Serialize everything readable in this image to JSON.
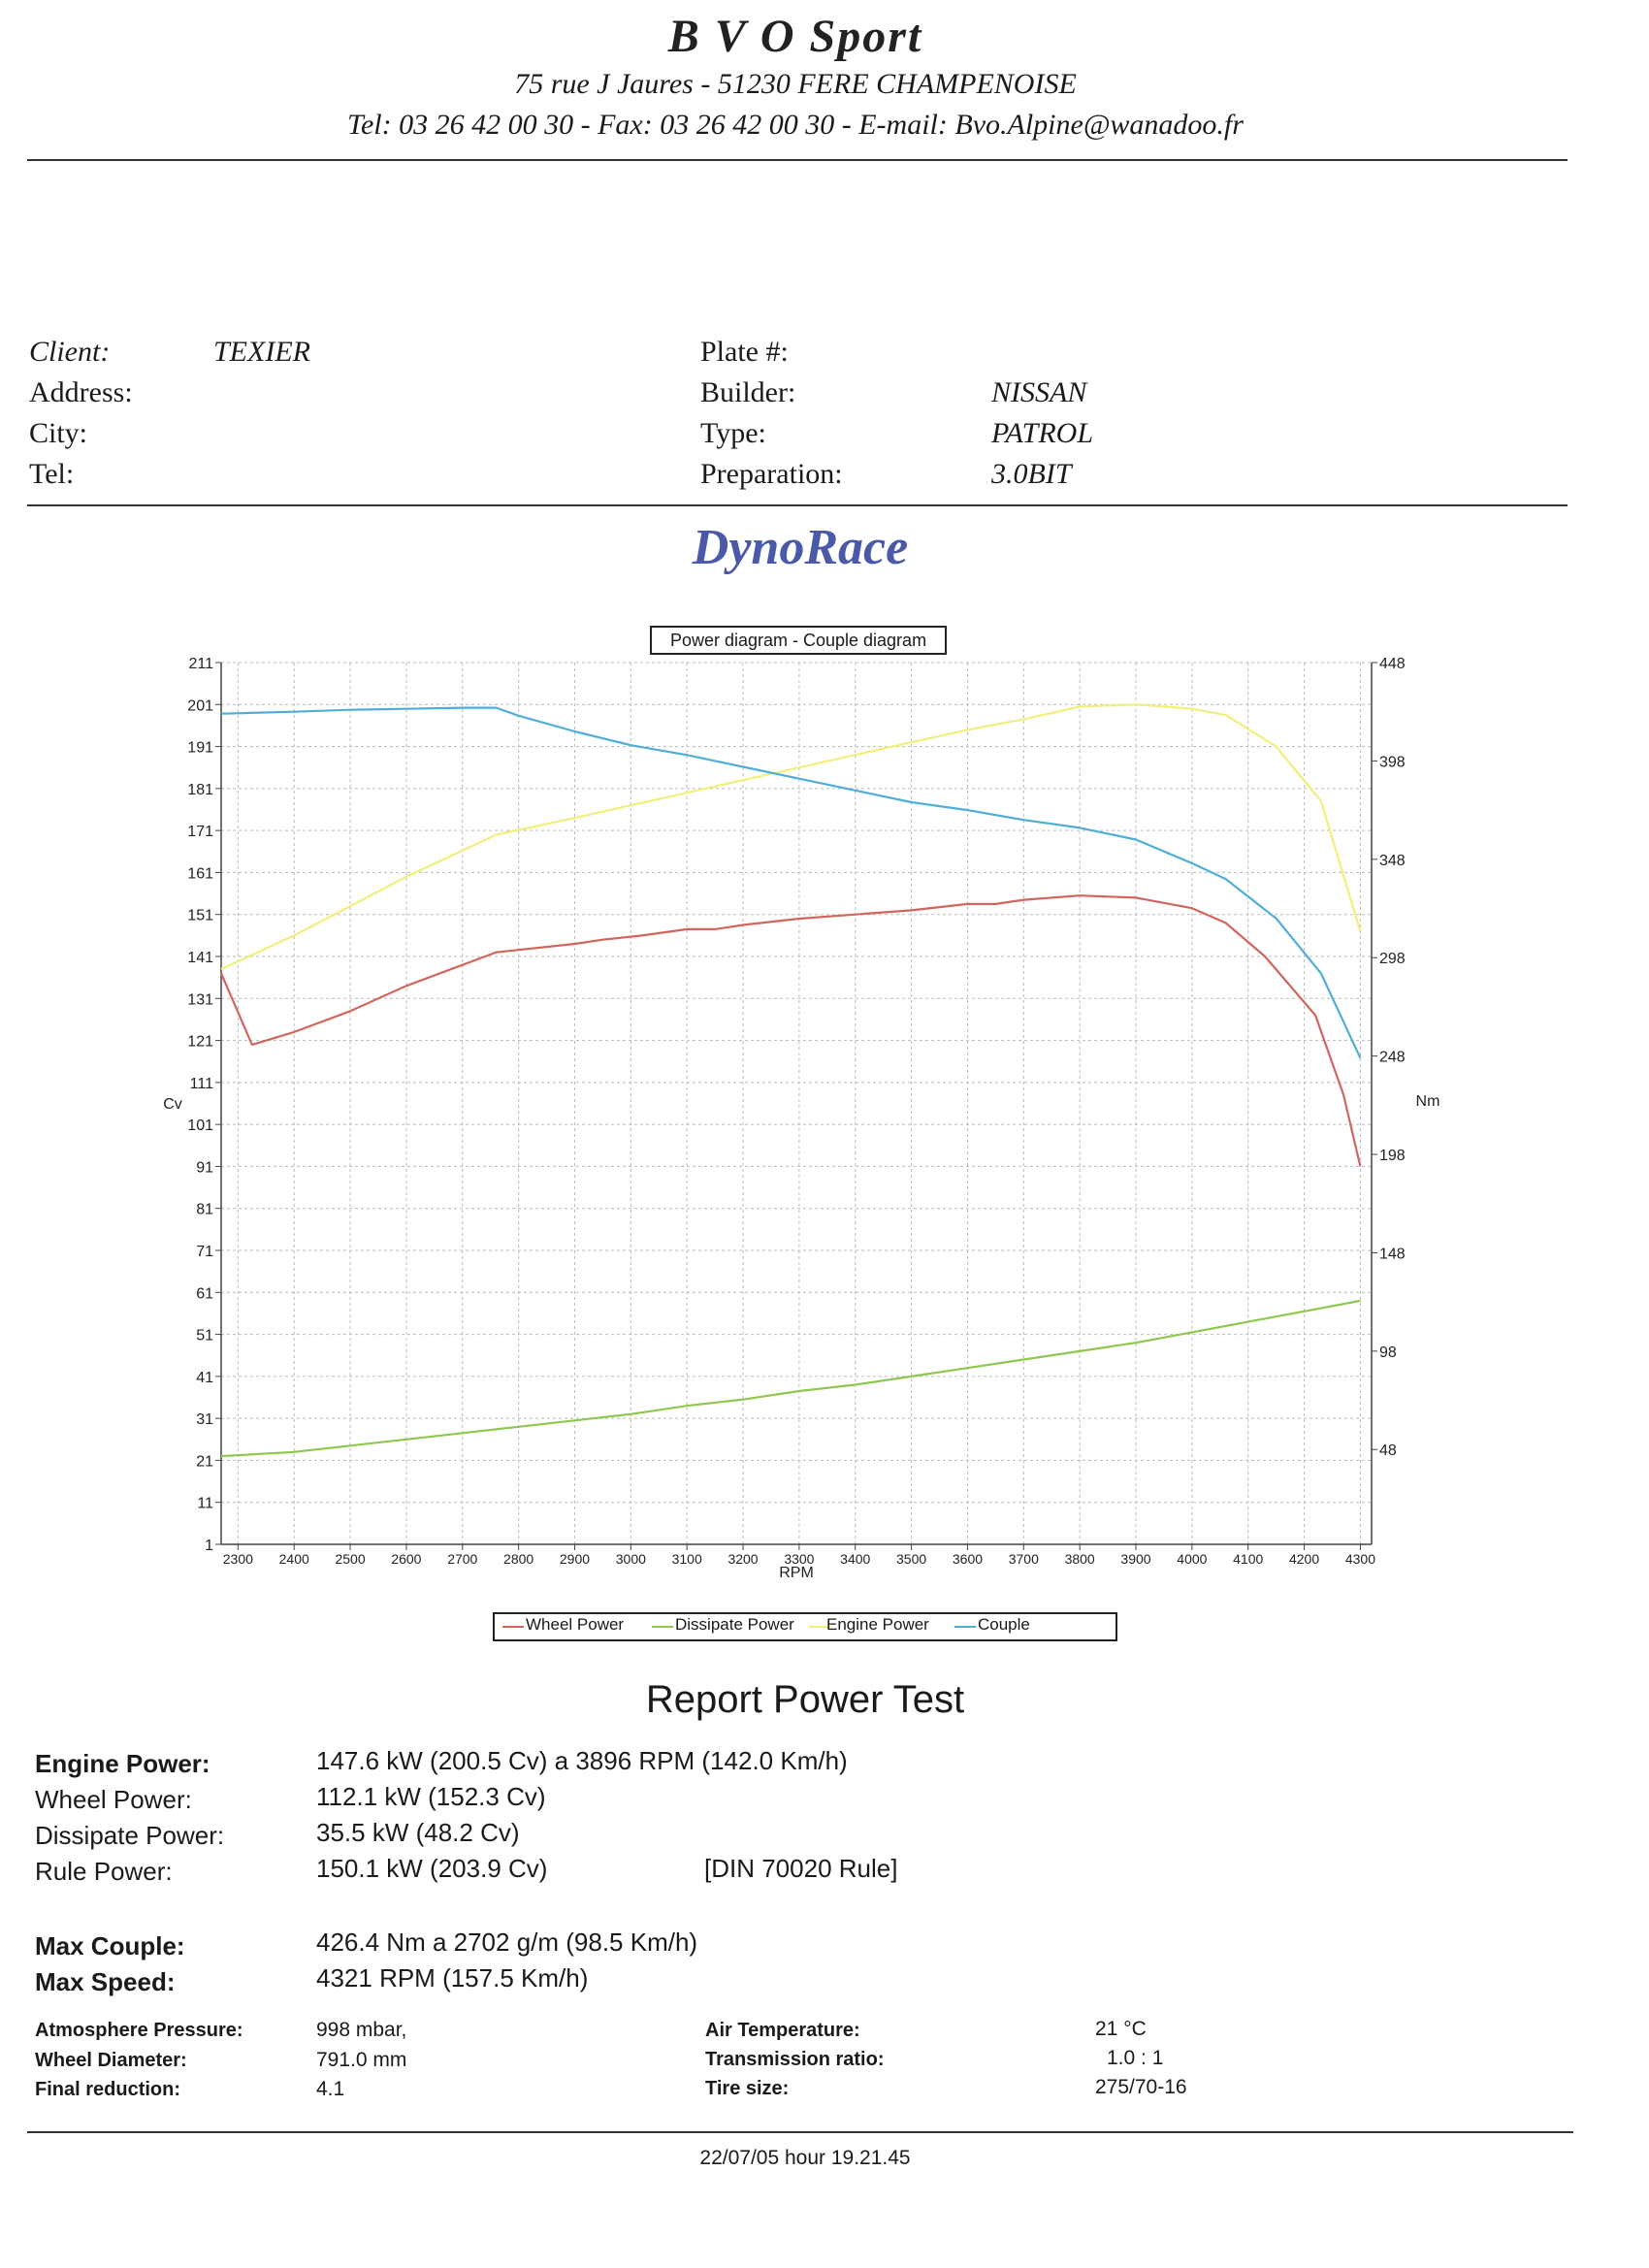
{
  "header": {
    "company": "B V O   Sport",
    "address": "75 rue J Jaures - 51230 FERE CHAMPENOISE",
    "contact": "Tel: 03 26 42 00 30 - Fax: 03 26 42 00 30 - E-mail: Bvo.Alpine@wanadoo.fr"
  },
  "client": {
    "client_label": "Client:",
    "client_value": "TEXIER",
    "address_label": "Address:",
    "city_label": "City:",
    "tel_label": "Tel:",
    "plate_label": "Plate #:",
    "builder_label": "Builder:",
    "builder_value": "NISSAN",
    "type_label": "Type:",
    "type_value": "PATROL",
    "prep_label": "Preparation:",
    "prep_value": "3.0BIT"
  },
  "brand": "DynoRace",
  "chart_data": {
    "type": "line",
    "title": "Power diagram - Couple diagram",
    "xlabel": "RPM",
    "ylabel_left": "Cv",
    "ylabel_right": "Nm",
    "x_ticks": [
      2300,
      2400,
      2500,
      2600,
      2700,
      2800,
      2900,
      3000,
      3100,
      3200,
      3300,
      3400,
      3500,
      3600,
      3700,
      3800,
      3900,
      4000,
      4100,
      4200,
      4300
    ],
    "xlim": [
      2270,
      4320
    ],
    "y_left_ticks": [
      1,
      11,
      21,
      31,
      41,
      51,
      61,
      71,
      81,
      91,
      101,
      111,
      121,
      131,
      141,
      151,
      161,
      171,
      181,
      191,
      201,
      211
    ],
    "ylim_left": [
      1,
      211
    ],
    "y_right_ticks": [
      48,
      98,
      148,
      198,
      248,
      298,
      348,
      398,
      448
    ],
    "ylim_right": [
      -0.2,
      448
    ],
    "grid": true,
    "legend_position": "bottom",
    "series": [
      {
        "name": "Wheel Power",
        "axis": "left",
        "color": "#d0665e",
        "x": [
          2270,
          2325,
          2400,
          2500,
          2600,
          2700,
          2760,
          2900,
          2950,
          3020,
          3100,
          3150,
          3200,
          3300,
          3400,
          3500,
          3600,
          3650,
          3700,
          3800,
          3900,
          4000,
          4060,
          4130,
          4220,
          4270,
          4300
        ],
        "y": [
          137,
          120,
          123,
          128,
          134,
          139,
          142,
          144,
          145,
          146,
          147.5,
          147.5,
          148.5,
          150,
          151,
          152,
          153.5,
          153.5,
          154.5,
          155.5,
          155,
          152.5,
          149,
          141,
          127,
          108,
          91
        ]
      },
      {
        "name": "Dissipate Power",
        "axis": "left",
        "color": "#8ec84e",
        "x": [
          2270,
          2400,
          2500,
          2600,
          2700,
          2800,
          2900,
          3000,
          3100,
          3200,
          3300,
          3400,
          3500,
          3600,
          3700,
          3800,
          3900,
          4000,
          4100,
          4200,
          4300
        ],
        "y": [
          22,
          23,
          24.5,
          26,
          27.5,
          29,
          30.5,
          32,
          34,
          35.5,
          37.5,
          39,
          41,
          43,
          45,
          47,
          49,
          51.5,
          54,
          56.5,
          59
        ]
      },
      {
        "name": "Engine Power",
        "axis": "left",
        "color": "#f2ef7a",
        "x": [
          2270,
          2400,
          2500,
          2600,
          2760,
          2900,
          3000,
          3100,
          3200,
          3300,
          3400,
          3500,
          3600,
          3700,
          3800,
          3900,
          4000,
          4060,
          4150,
          4230,
          4300
        ],
        "y": [
          138,
          146,
          153,
          160,
          170,
          174,
          177,
          180,
          183,
          186,
          189,
          192,
          195,
          197.5,
          200.5,
          201,
          200,
          198.5,
          191,
          178,
          147
        ]
      },
      {
        "name": "Couple",
        "axis": "right",
        "color": "#4eaed8",
        "x": [
          2270,
          2400,
          2500,
          2600,
          2700,
          2760,
          2800,
          2900,
          3000,
          3100,
          3200,
          3300,
          3400,
          3500,
          3600,
          3700,
          3800,
          3900,
          4000,
          4060,
          4150,
          4230,
          4300
        ],
        "y": [
          422,
          423,
          424,
          424.5,
          425,
          425,
          421,
          413,
          406,
          401,
          395,
          389,
          383,
          377,
          373,
          368,
          364,
          358,
          346,
          338,
          318,
          290,
          247
        ]
      }
    ]
  },
  "legend": [
    "Wheel Power",
    "Dissipate Power",
    "Engine Power",
    "Couple"
  ],
  "report": {
    "title": "Report Power Test",
    "engine_label": "Engine Power:",
    "engine_value": "147.6 kW (200.5 Cv) a 3896 RPM (142.0 Km/h)",
    "wheel_label": "Wheel Power:",
    "wheel_value": "112.1 kW (152.3 Cv)",
    "dissipate_label": "Dissipate Power:",
    "dissipate_value": "35.5 kW (48.2 Cv)",
    "rule_label": "Rule Power:",
    "rule_value": "150.1 kW (203.9 Cv)",
    "rule_note": "[DIN 70020 Rule]",
    "max_couple_label": "Max Couple:",
    "max_couple_value": "426.4 Nm a 2702 g/m (98.5 Km/h)",
    "max_speed_label": "Max Speed:",
    "max_speed_value": "4321 RPM (157.5 Km/h)",
    "atm_label": "Atmosphere Pressure:",
    "atm_value": "998 mbar,",
    "wheel_dia_label": "Wheel Diameter:",
    "wheel_dia_value": "791.0 mm",
    "final_red_label": "Final reduction:",
    "final_red_value": "4.1",
    "air_temp_label": "Air Temperature:",
    "air_temp_value": "21 °C",
    "trans_label": "Transmission ratio:",
    "trans_value": "1.0 : 1",
    "tire_label": "Tire size:",
    "tire_value": "275/70-16"
  },
  "footer": {
    "date": "22/07/05 hour 19.21.45"
  }
}
